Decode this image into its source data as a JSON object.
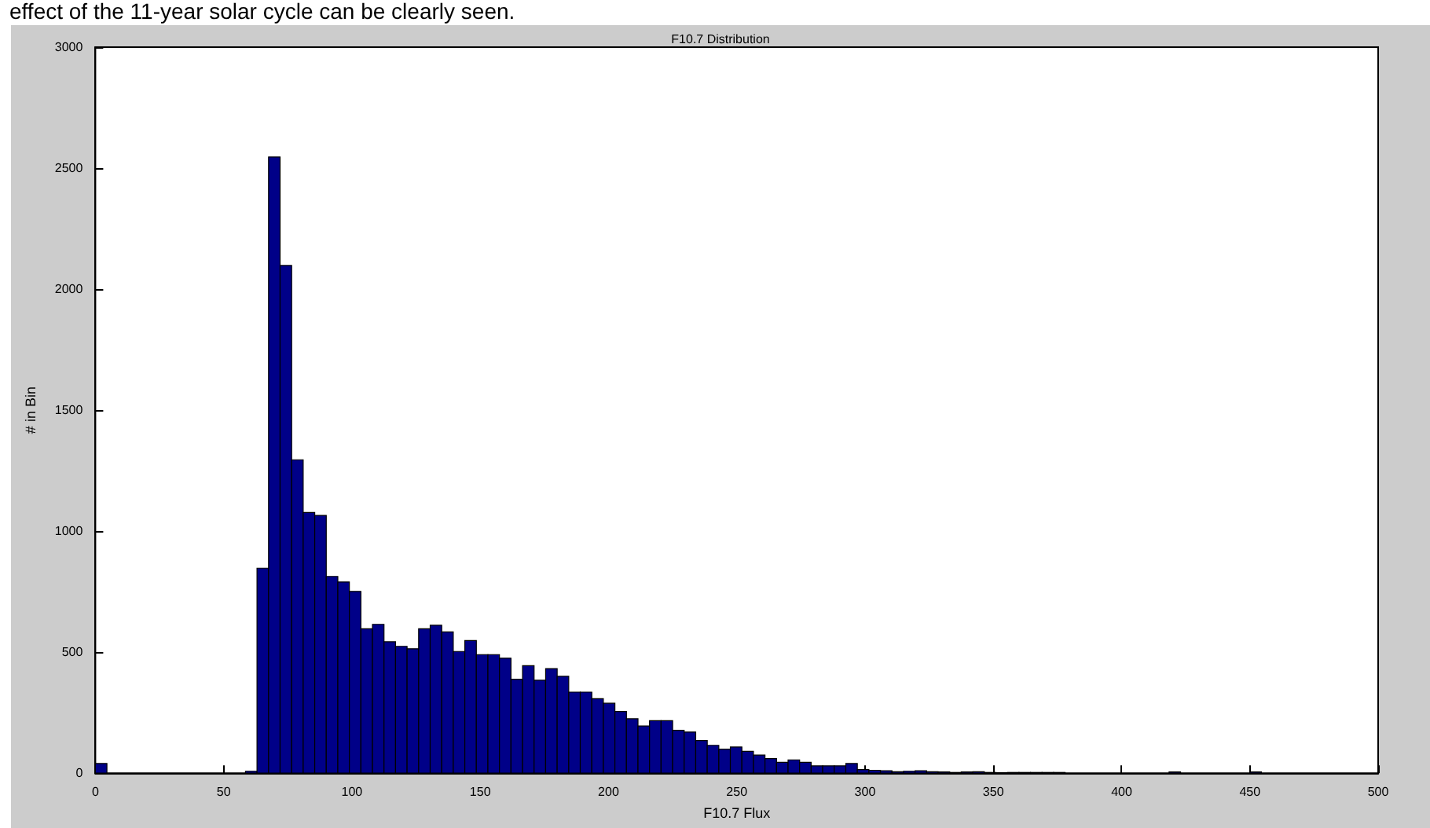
{
  "chart_data": {
    "type": "histogram",
    "title": "F10.7 Distribution",
    "xlabel": "F10.7 Flux",
    "ylabel": "# in Bin",
    "annotations": [
      "effect of the 11-year solar cycle can be clearly seen."
    ],
    "color": "#000088",
    "bins": [
      0,
      4.5,
      9,
      13.5,
      18,
      22.5,
      27,
      31.5,
      36,
      40.5,
      45,
      49.5,
      54,
      58.5,
      63,
      67.5,
      72,
      76.5,
      81,
      85.5,
      90,
      94.5,
      99,
      103.5,
      108,
      112.5,
      117,
      121.5,
      126,
      130.5,
      135,
      139.5,
      144,
      148.5,
      153,
      157.5,
      162,
      166.5,
      171,
      175.5,
      180,
      184.5,
      189,
      193.5,
      198,
      202.5,
      207,
      211.5,
      216,
      220.5,
      225,
      229.5,
      234,
      238.5,
      243,
      247.5,
      252,
      256.5,
      261,
      265.5,
      270,
      274.5,
      279,
      283.5,
      288,
      292.5,
      297,
      301.5,
      306,
      310.5,
      315,
      319.5,
      324,
      328.5,
      333,
      337.5,
      342,
      346.5,
      351,
      355.5,
      360,
      364.5,
      369,
      373.5,
      378,
      382.5,
      387,
      391.5,
      396,
      400.5,
      405,
      409.5,
      414,
      418.5,
      423,
      427.5,
      432,
      436.5,
      441,
      445.5,
      450,
      454.5
    ],
    "values": [
      40,
      0,
      0,
      0,
      0,
      0,
      0,
      0,
      0,
      0,
      0,
      0,
      0,
      8,
      847,
      2546,
      2098,
      1295,
      1077,
      1065,
      813,
      790,
      751,
      597,
      615,
      543,
      524,
      514,
      597,
      611,
      584,
      503,
      548,
      490,
      490,
      475,
      388,
      444,
      384,
      432,
      400,
      335,
      335,
      308,
      289,
      255,
      225,
      195,
      217,
      217,
      177,
      170,
      135,
      115,
      99,
      108,
      90,
      75,
      60,
      45,
      55,
      45,
      30,
      30,
      30,
      40,
      15,
      12,
      10,
      6,
      8,
      10,
      6,
      5,
      3,
      5,
      6,
      3,
      2,
      3,
      3,
      3,
      3,
      3,
      0,
      0,
      0,
      0,
      0,
      0,
      0,
      0,
      0,
      5,
      0,
      0,
      0,
      0,
      0,
      0,
      5
    ],
    "xlim": [
      0,
      500
    ],
    "xticks": [
      0,
      50,
      100,
      150,
      200,
      250,
      300,
      350,
      400,
      450,
      500
    ],
    "ylim": [
      0,
      3000
    ],
    "yticks": [
      0,
      500,
      1000,
      1500,
      2000,
      2500,
      3000
    ],
    "grid": false
  }
}
